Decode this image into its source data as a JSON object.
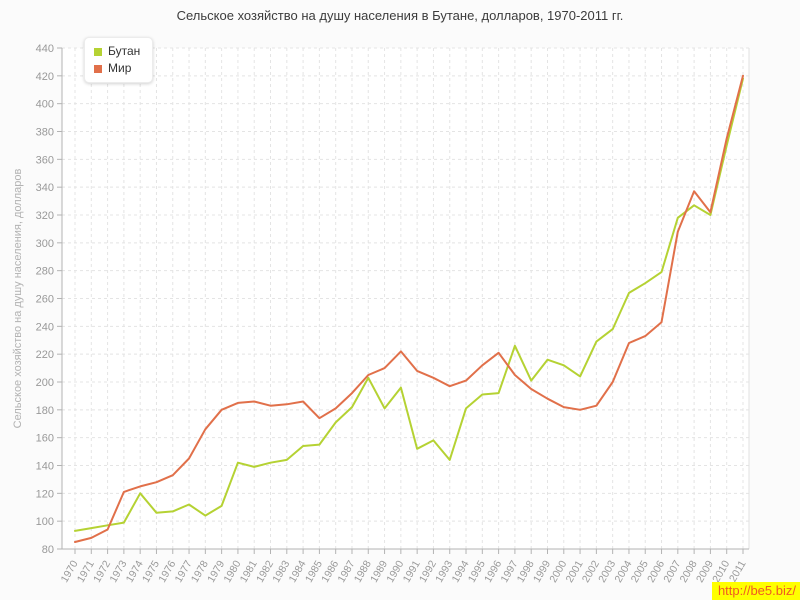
{
  "watermark": "http://be5.biz/",
  "chart_data": {
    "type": "line",
    "title": "Сельское хозяйство на душу населения в Бутане, долларов, 1970-2011 гг.",
    "xlabel": "",
    "ylabel": "Сельское хозяйство на душу населения, долларов",
    "ylim": [
      80,
      440
    ],
    "ytick_step": 20,
    "xtick_rotation": -60,
    "grid": true,
    "legend_position": "top-left",
    "categories": [
      "1970",
      "1971",
      "1972",
      "1973",
      "1974",
      "1975",
      "1976",
      "1977",
      "1978",
      "1979",
      "1980",
      "1981",
      "1982",
      "1983",
      "1984",
      "1985",
      "1986",
      "1987",
      "1988",
      "1989",
      "1990",
      "1991",
      "1992",
      "1993",
      "1994",
      "1995",
      "1996",
      "1997",
      "1998",
      "1999",
      "2000",
      "2001",
      "2002",
      "2003",
      "2004",
      "2005",
      "2006",
      "2007",
      "2008",
      "2009",
      "2010",
      "2011"
    ],
    "series": [
      {
        "name": "Бутан",
        "color": "#b5d233",
        "values": [
          93,
          95,
          97,
          99,
          120,
          106,
          107,
          112,
          104,
          111,
          142,
          139,
          142,
          144,
          154,
          155,
          171,
          182,
          203,
          181,
          196,
          152,
          158,
          144,
          181,
          191,
          192,
          226,
          201,
          216,
          212,
          204,
          229,
          238,
          264,
          271,
          279,
          318,
          327,
          320,
          370,
          418
        ]
      },
      {
        "name": "Мир",
        "color": "#e1704a",
        "values": [
          85,
          88,
          94,
          121,
          125,
          128,
          133,
          145,
          166,
          180,
          185,
          186,
          183,
          184,
          186,
          174,
          181,
          192,
          205,
          210,
          222,
          208,
          203,
          197,
          201,
          212,
          221,
          205,
          195,
          188,
          182,
          180,
          183,
          200,
          228,
          233,
          243,
          308,
          337,
          322,
          375,
          420
        ]
      }
    ],
    "colors": {
      "plot_background": "#ffffff",
      "grid": "#e4e4e4",
      "axis": "#b3b3b3",
      "tick_text": "#999999",
      "title_text": "#3c3c3c"
    }
  }
}
